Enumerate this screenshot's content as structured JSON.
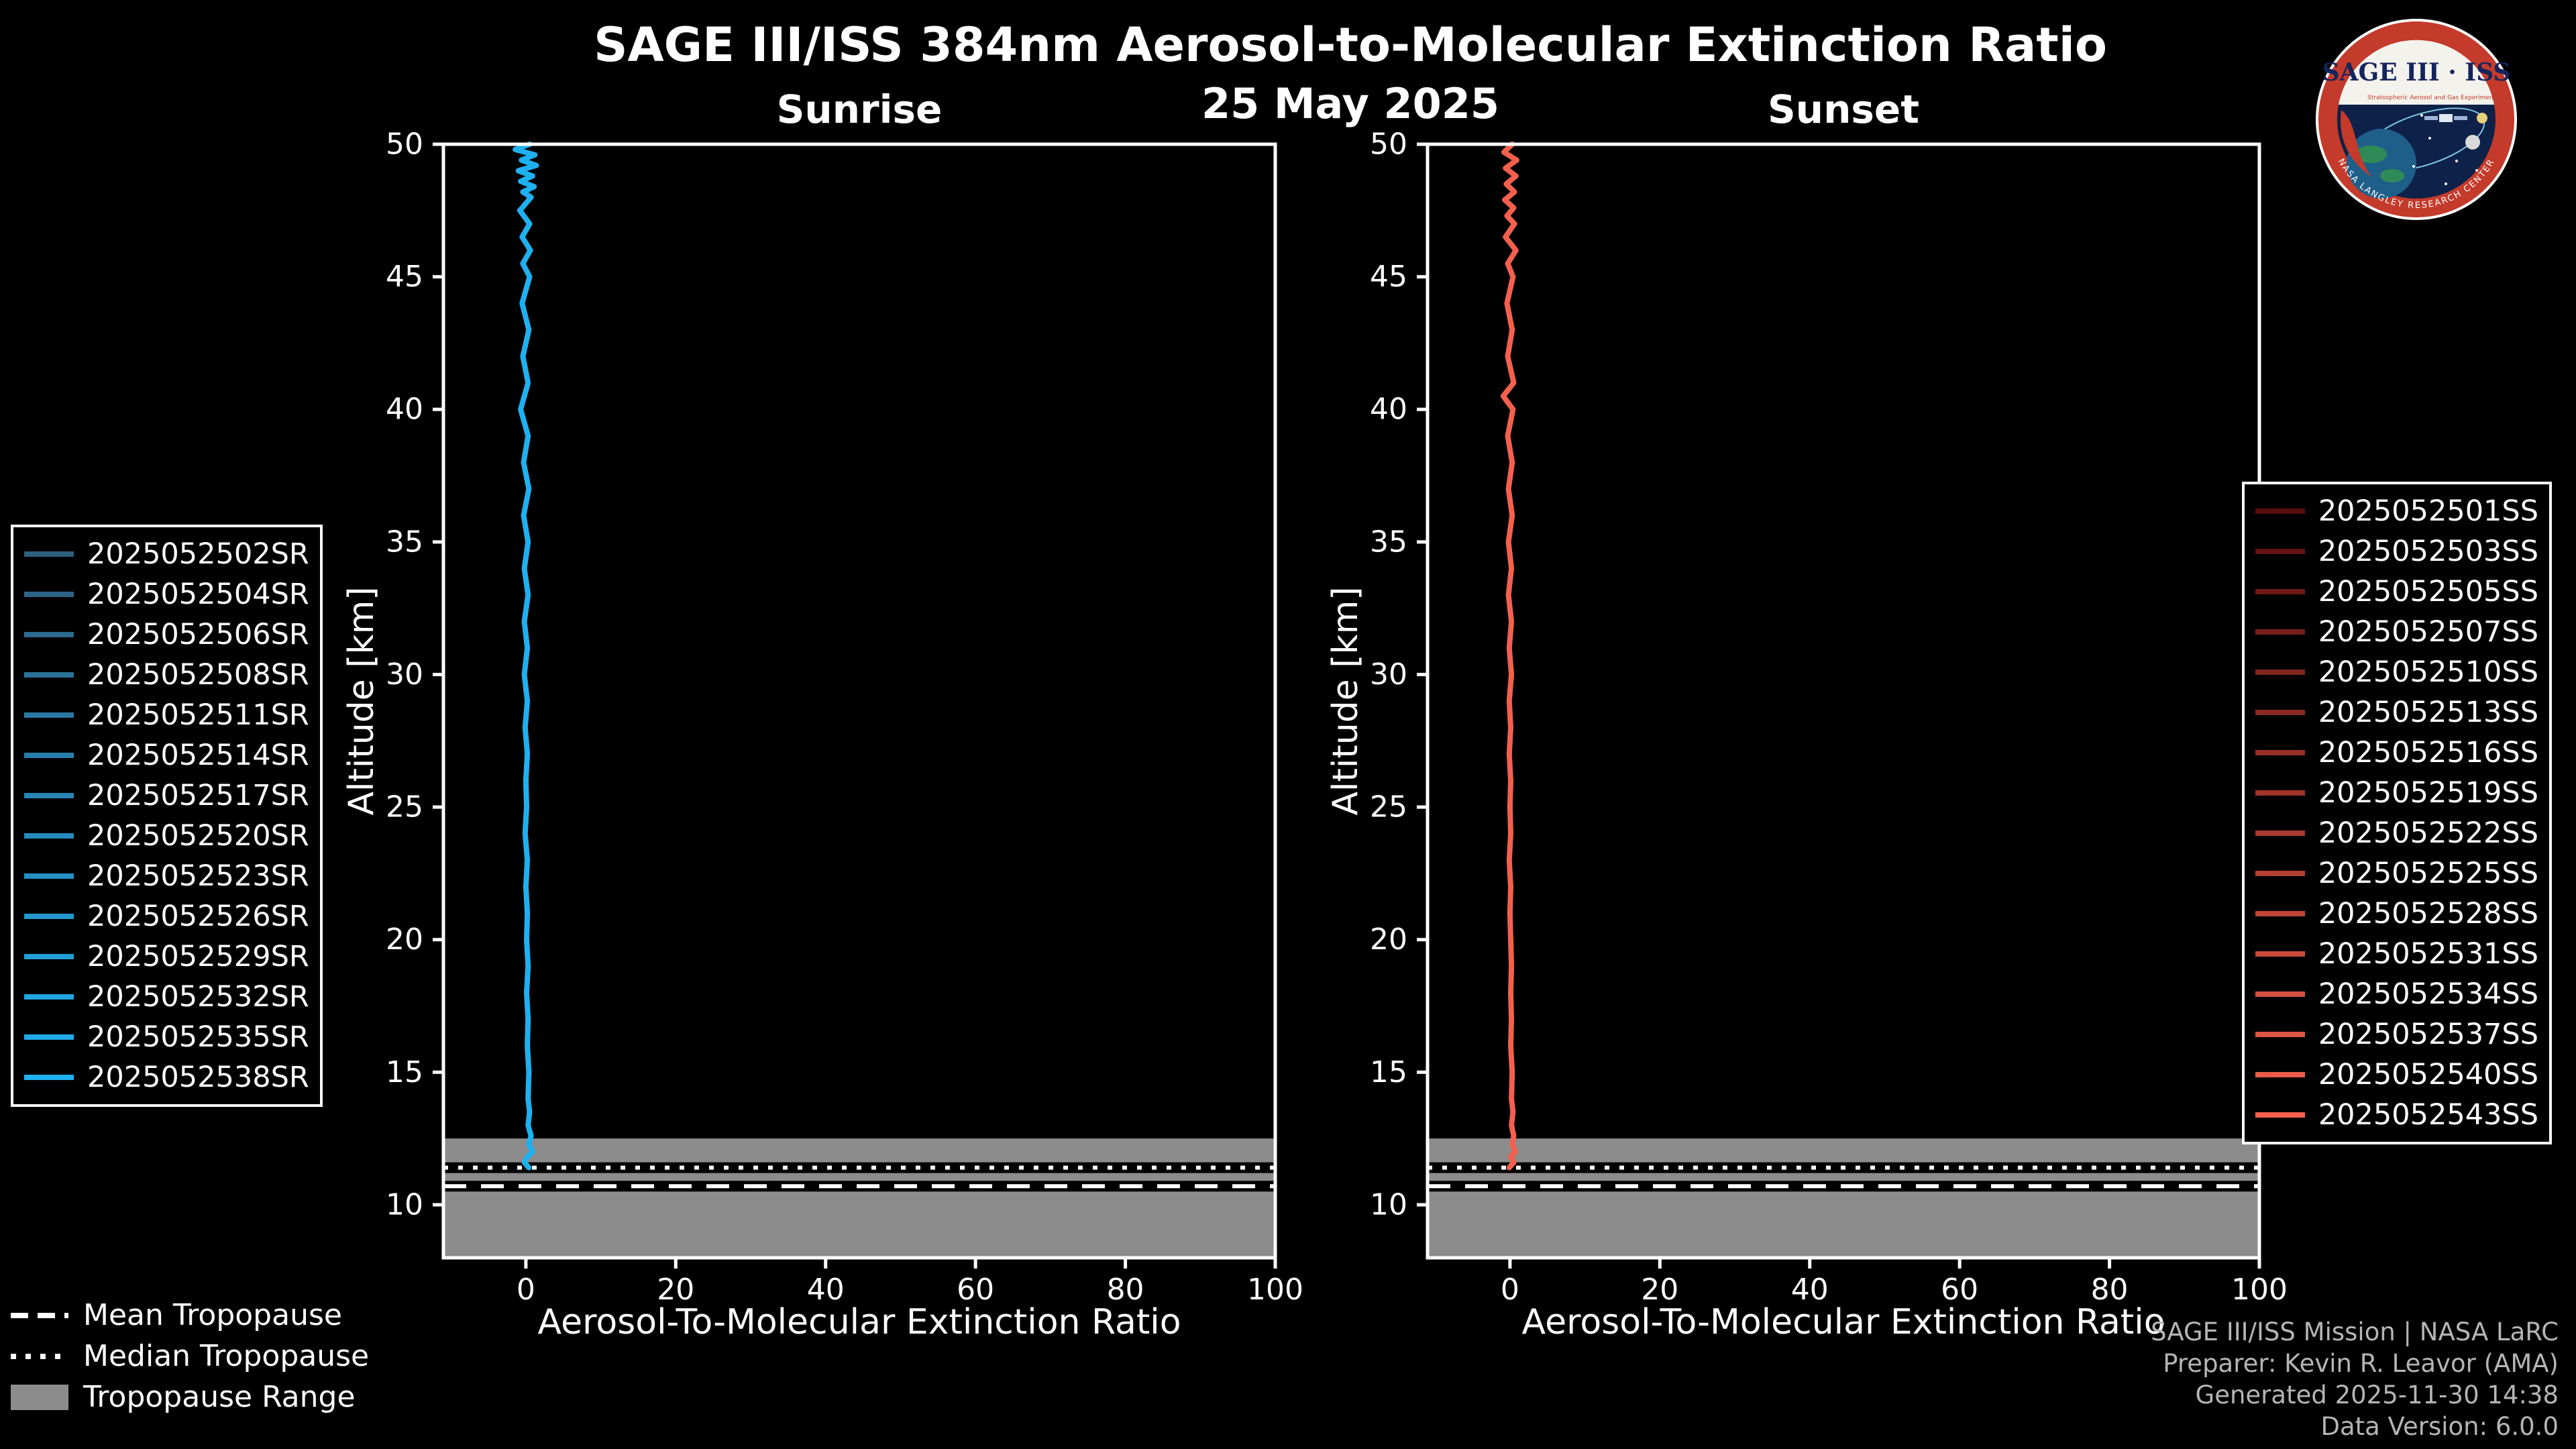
{
  "header": {
    "title": "SAGE III/ISS 384nm Aerosol-to-Molecular Extinction Ratio",
    "date": "25 May 2025"
  },
  "logo": {
    "title": "SAGE III · ISS",
    "subtitle": "Stratospheric Aerosol and Gas Experiment III",
    "ring_text": "NASA LANGLEY RESEARCH CENTER"
  },
  "colors": {
    "background": "#000000",
    "foreground": "#ffffff",
    "sunrise_line": "#1FB0F0",
    "sunset_line": "#F4604D",
    "tropopause_band": "#8c8c8c",
    "footer_text": "#b5b5b5"
  },
  "chart_data": [
    {
      "type": "line",
      "title": "Sunrise",
      "xlabel": "Aerosol-To-Molecular Extinction Ratio",
      "ylabel": "Altitude [km]",
      "xlim": [
        -11,
        100
      ],
      "ylim": [
        8,
        50
      ],
      "xticks": [
        0,
        20,
        40,
        60,
        80,
        100
      ],
      "yticks": [
        10,
        15,
        20,
        25,
        30,
        35,
        40,
        45,
        50
      ],
      "grid": false,
      "legend_position": "outside-left",
      "line_color": "#1FB0F0",
      "tropopause": {
        "mean_km": 10.7,
        "median_km": 11.4,
        "range_km": [
          8,
          12.5
        ]
      },
      "series": [
        {
          "name": "2025052502SR",
          "color": "#2E5F7F"
        },
        {
          "name": "2025052504SR",
          "color": "#2D6588"
        },
        {
          "name": "2025052506SR",
          "color": "#2C6B90"
        },
        {
          "name": "2025052508SR",
          "color": "#2B7299"
        },
        {
          "name": "2025052511SR",
          "color": "#2978A2"
        },
        {
          "name": "2025052514SR",
          "color": "#287EAA"
        },
        {
          "name": "2025052517SR",
          "color": "#2784B3"
        },
        {
          "name": "2025052520SR",
          "color": "#268BBC"
        },
        {
          "name": "2025052523SR",
          "color": "#2591C5"
        },
        {
          "name": "2025052526SR",
          "color": "#2497CD"
        },
        {
          "name": "2025052529SR",
          "color": "#229DD6"
        },
        {
          "name": "2025052532SR",
          "color": "#21A4DF"
        },
        {
          "name": "2025052535SR",
          "color": "#20AAE7"
        },
        {
          "name": "2025052538SR",
          "color": "#1FB0F0"
        }
      ],
      "profile": [
        [
          50,
          0.5
        ],
        [
          49.8,
          -1.4
        ],
        [
          49.6,
          1.2
        ],
        [
          49.4,
          -0.6
        ],
        [
          49.2,
          1.4
        ],
        [
          49,
          -1.0
        ],
        [
          48.8,
          0.9
        ],
        [
          48.6,
          -0.7
        ],
        [
          48.4,
          1.1
        ],
        [
          48.2,
          -0.4
        ],
        [
          48,
          0.7
        ],
        [
          47.5,
          -0.8
        ],
        [
          47,
          0.5
        ],
        [
          46.5,
          -0.5
        ],
        [
          46,
          0.6
        ],
        [
          45.5,
          -0.4
        ],
        [
          45,
          0.5
        ],
        [
          44,
          -0.5
        ],
        [
          43,
          0.4
        ],
        [
          42,
          -0.4
        ],
        [
          41,
          0.3
        ],
        [
          40,
          -0.7
        ],
        [
          39,
          0.3
        ],
        [
          38,
          -0.3
        ],
        [
          37,
          0.4
        ],
        [
          36,
          -0.3
        ],
        [
          35,
          0.3
        ],
        [
          34,
          -0.2
        ],
        [
          33,
          0.3
        ],
        [
          32,
          -0.2
        ],
        [
          31,
          0.2
        ],
        [
          30,
          -0.2
        ],
        [
          29,
          0.2
        ],
        [
          28,
          -0.1
        ],
        [
          27,
          0.2
        ],
        [
          26,
          0.0
        ],
        [
          25,
          0.1
        ],
        [
          24,
          -0.1
        ],
        [
          23,
          0.2
        ],
        [
          22,
          0.0
        ],
        [
          21,
          0.2
        ],
        [
          20,
          0.1
        ],
        [
          19,
          0.3
        ],
        [
          18,
          0.1
        ],
        [
          17,
          0.3
        ],
        [
          16,
          0.2
        ],
        [
          15,
          0.4
        ],
        [
          14,
          0.3
        ],
        [
          13.5,
          0.5
        ],
        [
          13,
          0.3
        ],
        [
          12.6,
          0.7
        ],
        [
          12.3,
          0.4
        ],
        [
          12,
          0.9
        ],
        [
          11.8,
          0.2
        ],
        [
          11.6,
          -0.2
        ],
        [
          11.4,
          0.4
        ]
      ]
    },
    {
      "type": "line",
      "title": "Sunset",
      "xlabel": "Aerosol-To-Molecular Extinction Ratio",
      "ylabel": "Altitude [km]",
      "xlim": [
        -11,
        100
      ],
      "ylim": [
        8,
        50
      ],
      "xticks": [
        0,
        20,
        40,
        60,
        80,
        100
      ],
      "yticks": [
        10,
        15,
        20,
        25,
        30,
        35,
        40,
        45,
        50
      ],
      "grid": false,
      "legend_position": "outside-right",
      "line_color": "#F4604D",
      "tropopause": {
        "mean_km": 10.7,
        "median_km": 11.4,
        "range_km": [
          8,
          12.5
        ]
      },
      "series": [
        {
          "name": "2025052501SS",
          "color": "#5A0E0E"
        },
        {
          "name": "2025052503SS",
          "color": "#641312"
        },
        {
          "name": "2025052505SS",
          "color": "#6F1916"
        },
        {
          "name": "2025052507SS",
          "color": "#791E1B"
        },
        {
          "name": "2025052510SS",
          "color": "#83241F"
        },
        {
          "name": "2025052513SS",
          "color": "#8D2923"
        },
        {
          "name": "2025052516SS",
          "color": "#982F27"
        },
        {
          "name": "2025052519SS",
          "color": "#A2342B"
        },
        {
          "name": "2025052522SS",
          "color": "#AC3A30"
        },
        {
          "name": "2025052525SS",
          "color": "#B63F34"
        },
        {
          "name": "2025052528SS",
          "color": "#C14538"
        },
        {
          "name": "2025052531SS",
          "color": "#CB4A3C"
        },
        {
          "name": "2025052534SS",
          "color": "#D55040"
        },
        {
          "name": "2025052537SS",
          "color": "#DF5545"
        },
        {
          "name": "2025052540SS",
          "color": "#EA5B49"
        },
        {
          "name": "2025052543SS",
          "color": "#F4604D"
        }
      ],
      "profile": [
        [
          50,
          0.3
        ],
        [
          49.7,
          -0.8
        ],
        [
          49.4,
          0.9
        ],
        [
          49.1,
          -0.6
        ],
        [
          48.8,
          0.8
        ],
        [
          48.5,
          -0.5
        ],
        [
          48.2,
          0.6
        ],
        [
          47.9,
          -0.7
        ],
        [
          47.6,
          0.5
        ],
        [
          47.3,
          -0.4
        ],
        [
          47,
          0.6
        ],
        [
          46.5,
          -0.6
        ],
        [
          46,
          0.8
        ],
        [
          45.5,
          -0.3
        ],
        [
          45,
          0.4
        ],
        [
          44,
          -0.4
        ],
        [
          43,
          0.3
        ],
        [
          42,
          -0.3
        ],
        [
          41,
          0.5
        ],
        [
          40.5,
          -0.9
        ],
        [
          40,
          0.4
        ],
        [
          39,
          -0.3
        ],
        [
          38,
          0.3
        ],
        [
          37,
          -0.2
        ],
        [
          36,
          0.3
        ],
        [
          35,
          -0.2
        ],
        [
          34,
          0.2
        ],
        [
          33,
          -0.2
        ],
        [
          32,
          0.2
        ],
        [
          31,
          -0.1
        ],
        [
          30,
          0.2
        ],
        [
          29,
          -0.1
        ],
        [
          28,
          0.1
        ],
        [
          27,
          -0.1
        ],
        [
          26,
          0.1
        ],
        [
          25,
          0.0
        ],
        [
          24,
          0.1
        ],
        [
          23,
          -0.1
        ],
        [
          22,
          0.1
        ],
        [
          21,
          0.0
        ],
        [
          20,
          0.1
        ],
        [
          19,
          0.2
        ],
        [
          18,
          0.1
        ],
        [
          17,
          0.2
        ],
        [
          16,
          0.1
        ],
        [
          15,
          0.3
        ],
        [
          14,
          0.2
        ],
        [
          13.5,
          0.4
        ],
        [
          13,
          0.2
        ],
        [
          12.6,
          0.5
        ],
        [
          12.3,
          0.3
        ],
        [
          12,
          0.7
        ],
        [
          11.8,
          0.1
        ],
        [
          11.6,
          0.5
        ],
        [
          11.4,
          -0.1
        ]
      ]
    }
  ],
  "tropopause_legend": {
    "items": [
      {
        "label": "Mean Tropopause",
        "style": "dashed"
      },
      {
        "label": "Median Tropopause",
        "style": "dotted"
      },
      {
        "label": "Tropopause Range",
        "style": "patch"
      }
    ]
  },
  "footer": {
    "lines": [
      "SAGE III/ISS Mission | NASA LaRC",
      "Preparer: Kevin R. Leavor (AMA)",
      "Generated 2025-11-30 14:38",
      "Data Version: 6.0.0"
    ]
  }
}
